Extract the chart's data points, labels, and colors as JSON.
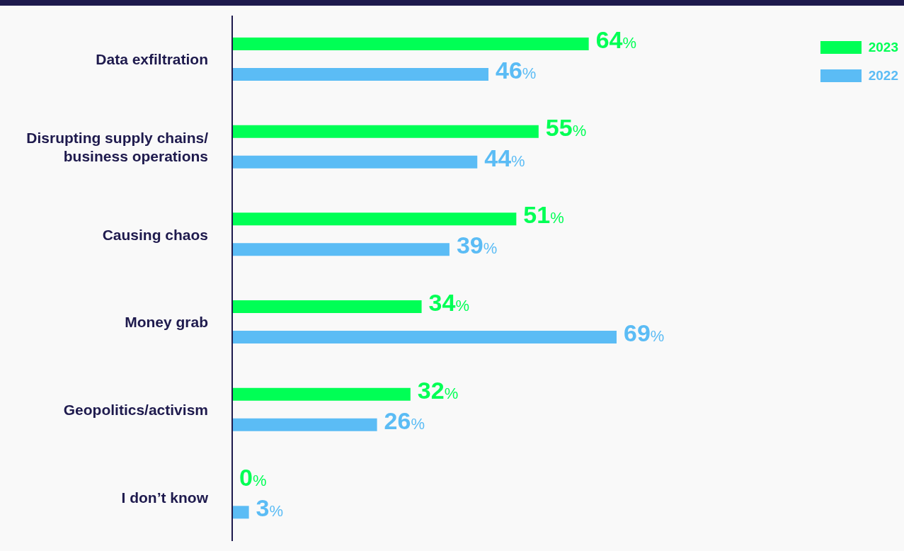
{
  "chart_data": {
    "type": "bar",
    "orientation": "horizontal",
    "categories": [
      "Data exfiltration",
      "Disrupting supply chains/ business operations",
      "Causing chaos",
      "Money grab",
      "Geopolitics/activism",
      "I don’t know"
    ],
    "series": [
      {
        "name": "2023",
        "color": "#00ff55",
        "values": [
          64,
          55,
          51,
          34,
          32,
          0
        ],
        "value_labels": [
          "64%",
          "55%",
          "51%",
          "34%",
          "32%",
          "0%"
        ]
      },
      {
        "name": "2022",
        "color": "#5bbcf5",
        "values": [
          46,
          44,
          39,
          69,
          26,
          3
        ],
        "value_labels": [
          "46%",
          "44%",
          "39%",
          "69%",
          "26%",
          "3%"
        ]
      }
    ],
    "legend": "top right",
    "grid": false
  }
}
